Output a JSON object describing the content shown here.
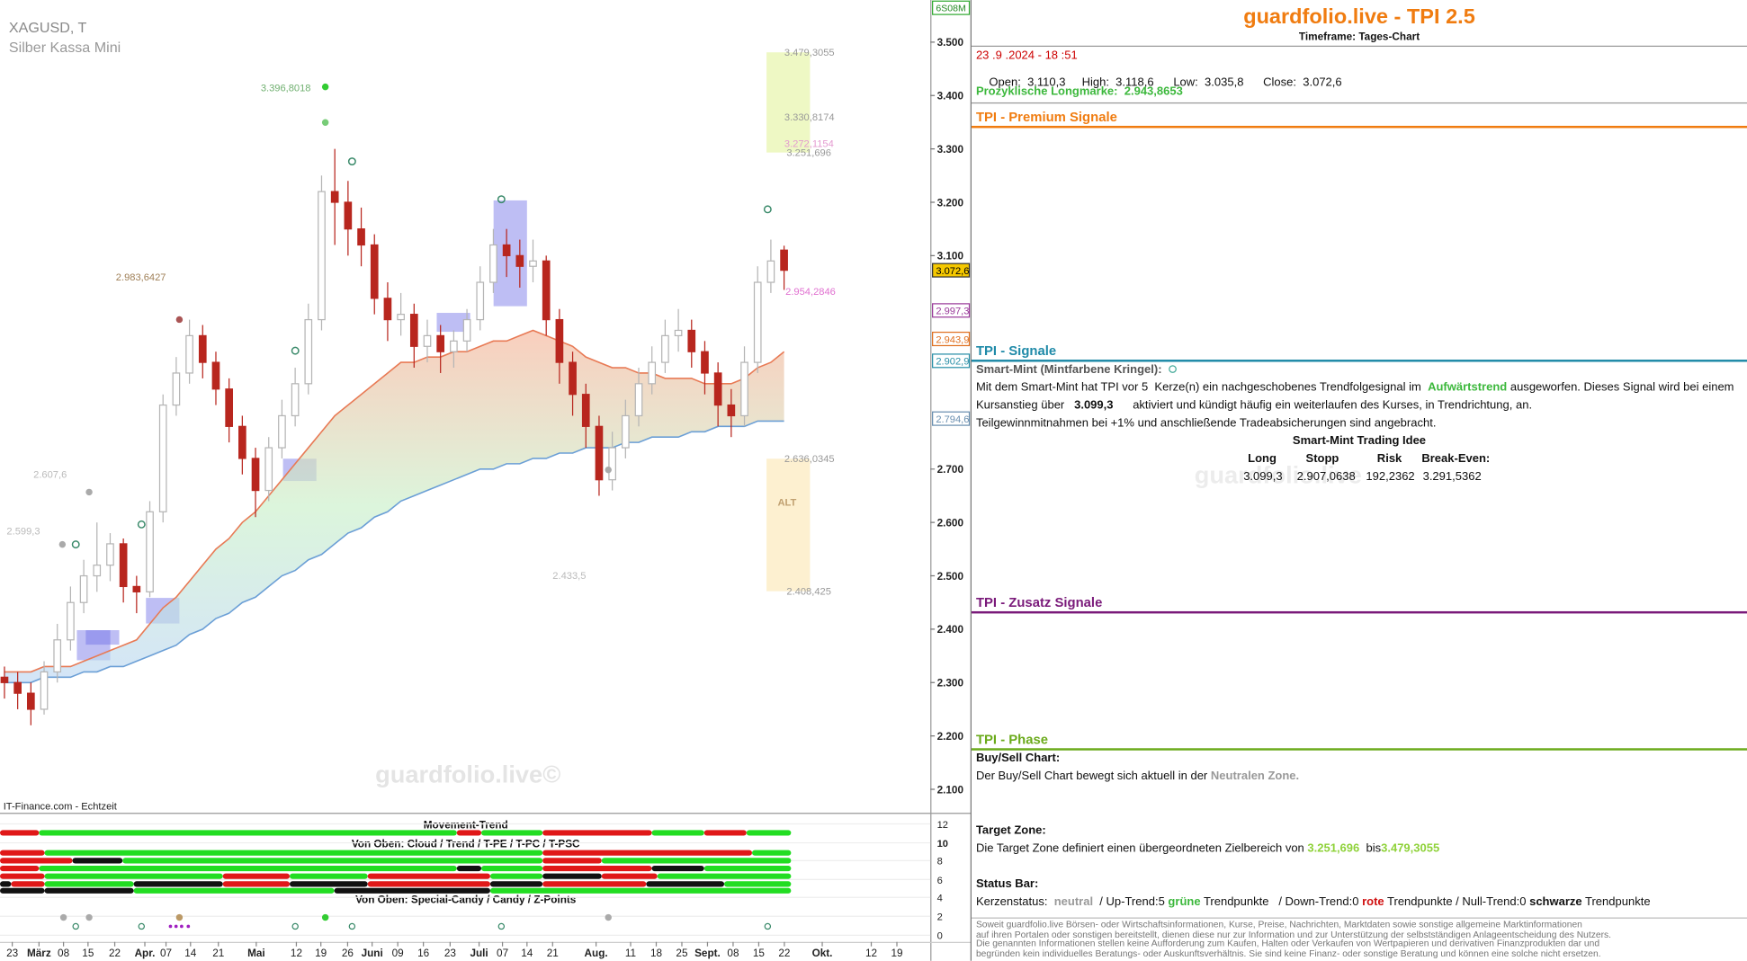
{
  "chart_data": {
    "type": "candlestick",
    "title": "XAGUSD, T",
    "subtitle": "Silber Kassa Mini",
    "badge": "6S08M",
    "source": "IT-Finance.com - Echtzeit",
    "watermark": "guardfolio.live©",
    "x_labels": [
      "23",
      "März",
      "08",
      "15",
      "22",
      "Apr.",
      "07",
      "14",
      "21",
      "Mai",
      "12",
      "19",
      "26",
      "Juni",
      "09",
      "16",
      "23",
      "Juli",
      "07",
      "14",
      "21",
      "Aug.",
      "11",
      "18",
      "25",
      "Sept.",
      "08",
      "15",
      "22",
      "Okt.",
      "12",
      "19"
    ],
    "open": [
      2.31,
      2.3,
      2.28,
      2.25,
      2.32,
      2.38,
      2.45,
      2.5,
      2.52,
      2.56,
      2.48,
      2.47,
      2.62,
      2.82,
      2.88,
      2.95,
      2.9,
      2.85,
      2.78,
      2.72,
      2.66,
      2.74,
      2.8,
      2.86,
      2.98,
      3.22,
      3.2,
      3.15,
      3.12,
      3.02,
      2.98,
      2.99,
      2.93,
      2.95,
      2.92,
      2.94,
      2.98,
      3.05,
      3.12,
      3.1,
      3.08,
      3.09,
      2.98,
      2.9,
      2.84,
      2.78,
      2.68,
      2.74,
      2.8,
      2.86,
      2.9,
      2.95,
      2.96,
      2.92,
      2.88,
      2.82,
      2.8,
      2.9,
      3.05,
      3.1103
    ],
    "high": [
      2.33,
      2.32,
      2.3,
      2.34,
      2.41,
      2.48,
      2.53,
      2.6,
      2.58,
      2.57,
      2.5,
      2.64,
      2.84,
      2.91,
      2.98,
      2.97,
      2.92,
      2.87,
      2.8,
      2.74,
      2.76,
      2.83,
      2.89,
      3.01,
      3.25,
      3.3,
      3.24,
      3.19,
      3.14,
      3.05,
      3.03,
      3.01,
      2.98,
      2.97,
      2.96,
      3.0,
      3.08,
      3.15,
      3.15,
      3.13,
      3.13,
      3.1,
      3.0,
      2.92,
      2.86,
      2.8,
      2.77,
      2.83,
      2.89,
      2.93,
      2.98,
      3.0,
      2.98,
      2.94,
      2.9,
      2.85,
      2.93,
      3.08,
      3.13,
      3.1186
    ],
    "low": [
      2.27,
      2.25,
      2.22,
      2.24,
      2.3,
      2.36,
      2.43,
      2.47,
      2.49,
      2.45,
      2.43,
      2.46,
      2.6,
      2.8,
      2.86,
      2.87,
      2.82,
      2.75,
      2.69,
      2.61,
      2.64,
      2.72,
      2.78,
      2.84,
      2.96,
      3.12,
      3.1,
      3.08,
      2.99,
      2.94,
      2.95,
      2.89,
      2.9,
      2.88,
      2.89,
      2.92,
      2.96,
      3.03,
      3.06,
      3.04,
      3.05,
      2.95,
      2.86,
      2.8,
      2.74,
      2.65,
      2.66,
      2.72,
      2.78,
      2.84,
      2.88,
      2.92,
      2.89,
      2.84,
      2.78,
      2.76,
      2.78,
      2.88,
      3.03,
      3.0358
    ],
    "close": [
      2.3,
      2.28,
      2.25,
      2.32,
      2.38,
      2.45,
      2.5,
      2.52,
      2.56,
      2.48,
      2.47,
      2.62,
      2.82,
      2.88,
      2.95,
      2.9,
      2.85,
      2.78,
      2.72,
      2.66,
      2.74,
      2.8,
      2.86,
      2.98,
      3.22,
      3.2,
      3.15,
      3.12,
      3.02,
      2.98,
      2.99,
      2.93,
      2.95,
      2.92,
      2.94,
      2.98,
      3.05,
      3.12,
      3.1,
      3.08,
      3.09,
      2.98,
      2.9,
      2.84,
      2.78,
      2.68,
      2.74,
      2.8,
      2.86,
      2.9,
      2.95,
      2.96,
      2.92,
      2.88,
      2.82,
      2.8,
      2.9,
      3.05,
      3.09,
      3.0726
    ],
    "up_color": "#b5b5b5",
    "down_color": "#b8261e",
    "ma": [
      {
        "color": "#e87a55",
        "values": [
          2.32,
          2.32,
          2.32,
          2.33,
          2.33,
          2.33,
          2.34,
          2.35,
          2.36,
          2.37,
          2.38,
          2.41,
          2.44,
          2.46,
          2.49,
          2.52,
          2.55,
          2.57,
          2.6,
          2.62,
          2.65,
          2.68,
          2.71,
          2.74,
          2.77,
          2.8,
          2.82,
          2.84,
          2.86,
          2.88,
          2.9,
          2.9,
          2.91,
          2.91,
          2.92,
          2.92,
          2.93,
          2.94,
          2.94,
          2.95,
          2.96,
          2.95,
          2.94,
          2.93,
          2.91,
          2.9,
          2.89,
          2.89,
          2.88,
          2.88,
          2.87,
          2.87,
          2.87,
          2.86,
          2.86,
          2.86,
          2.87,
          2.89,
          2.9,
          2.92
        ]
      },
      {
        "color": "#6b9fd6",
        "values": [
          2.3,
          2.3,
          2.3,
          2.31,
          2.31,
          2.31,
          2.32,
          2.32,
          2.33,
          2.33,
          2.34,
          2.35,
          2.36,
          2.37,
          2.39,
          2.4,
          2.42,
          2.43,
          2.45,
          2.46,
          2.48,
          2.5,
          2.51,
          2.53,
          2.54,
          2.56,
          2.58,
          2.59,
          2.61,
          2.62,
          2.64,
          2.65,
          2.66,
          2.67,
          2.68,
          2.69,
          2.7,
          2.7,
          2.71,
          2.71,
          2.72,
          2.72,
          2.73,
          2.73,
          2.74,
          2.74,
          2.74,
          2.75,
          2.75,
          2.76,
          2.76,
          2.76,
          2.77,
          2.77,
          2.78,
          2.78,
          2.78,
          2.79,
          2.79,
          2.79
        ]
      }
    ],
    "ylim": [
      2.056,
      3.579
    ],
    "yticks": [
      {
        "value": 3.5,
        "label": "3.500"
      },
      {
        "value": 3.4,
        "label": "3.400"
      },
      {
        "value": 3.3,
        "label": "3.300"
      },
      {
        "value": 3.2,
        "label": "3.200"
      },
      {
        "value": 3.1,
        "label": "3.100"
      },
      {
        "value": 2.7,
        "label": "2.700"
      },
      {
        "value": 2.6,
        "label": "2.600"
      },
      {
        "value": 2.5,
        "label": "2.500"
      },
      {
        "value": 2.4,
        "label": "2.400"
      },
      {
        "value": 2.3,
        "label": "2.300"
      },
      {
        "value": 2.2,
        "label": "2.200"
      },
      {
        "value": 2.1,
        "label": "2.100"
      }
    ],
    "price_tags": [
      {
        "value": 3.0726,
        "label": "3.072,6",
        "color": "#f5c800"
      },
      {
        "value": 2.9973,
        "label": "2.997,3",
        "color": "#9b3b9b"
      },
      {
        "value": 2.9439,
        "label": "2.943,9",
        "color": "#e07020"
      },
      {
        "value": 2.9029,
        "label": "2.902,9",
        "color": "#2a90a8"
      },
      {
        "value": 2.7946,
        "label": "2.794,6",
        "color": "#6a8fb0"
      }
    ],
    "annotations": [
      {
        "text": "3.479,3055",
        "color": "#999999"
      },
      {
        "text": "3.330,8174",
        "color": "#999999"
      },
      {
        "text": "3.272,1154",
        "color": "#e49ad0"
      },
      {
        "text": "3.251,696",
        "color": "#999999"
      },
      {
        "text": "2.954,2846",
        "color": "#e070d0"
      },
      {
        "text": "2.636,0345",
        "color": "#999999"
      },
      {
        "text": "2.408,425",
        "color": "#999999"
      },
      {
        "text": "ALT",
        "color": "#c0a070"
      },
      {
        "text": "3.396,8018",
        "color": "#70b070"
      },
      {
        "text": "2.983,6427",
        "color": "#a08058"
      },
      {
        "text": "2.607,6",
        "color": "#bbbbbb"
      },
      {
        "text": "2.599,3",
        "color": "#bbbbbb"
      },
      {
        "text": "2.433,5",
        "color": "#bbbbbb"
      }
    ],
    "indicator": {
      "titles": [
        "Movement-Trend",
        "Von Oben: Cloud / Trend / T-PE / T-PC / T-PSC",
        "Von Oben: Special-Candy / Candy / Z-Points"
      ],
      "yticks": [
        12,
        10,
        8,
        6,
        4,
        2,
        0
      ]
    }
  },
  "panel": {
    "title": "guardfolio.live - TPI 2.5",
    "timeframe": "Timeframe: Tages-Chart",
    "datetime": "23 .9 .2024 - 18 :51",
    "quote": [
      [
        "Open:",
        "3.110,3"
      ],
      [
        "High:",
        "3.118,6"
      ],
      [
        "Low:",
        "3.035,8"
      ],
      [
        "Close:",
        "3.072,6"
      ]
    ],
    "longmark_label": "Prozyklische Longmarke:",
    "longmark_value": "2.943,8653",
    "sections": {
      "premium": "TPI - Premium Signale",
      "signals": "TPI - Signale",
      "extra": "TPI - Zusatz Signale",
      "phase": "TPI - Phase"
    },
    "smart_mint": {
      "heading": "Smart-Mint (Mintfarbene Kringel):",
      "line1": [
        "Mit dem Smart-Mint hat TPI vor 5  Kerze(n) ein nachgeschobenes Trendfolgesignal im  ",
        "Aufwärtstrend",
        " ausgeworfen. Dieses Signal wird bei einem"
      ],
      "line2": [
        "Kursanstieg über   ",
        "3.099,3",
        "      aktiviert und kündigt häufig ein weiterlaufen des Kurses, in Trendrichtung, an."
      ],
      "line3": "Teilgewinnmitnahmen bei +1% und anschließende Tradeabsicherungen sind angebracht.",
      "idea_title": "Smart-Mint Trading Idee",
      "table_header": [
        "Long",
        "Stopp",
        "Risk",
        "Break-Even:"
      ],
      "table_row": [
        "3.099,3",
        "2.907,0638",
        "192,2362",
        "3.291,5362"
      ],
      "watermark": "guardfolio.live"
    },
    "phase": {
      "buysell_heading": "Buy/Sell Chart:",
      "buysell_text": [
        "Der Buy/Sell Chart bewegt sich aktuell in der ",
        "Neutralen Zone."
      ],
      "target_heading": "Target Zone:",
      "target_text": [
        "Die Target Zone definiert einen übergeordneten Zielbereich von ",
        "3.251,696",
        "  bis",
        "3.479,3055"
      ],
      "status_heading": "Status Bar:",
      "status_text": [
        "Kerzenstatus:  ",
        "neutral",
        "  / Up-Trend:5 ",
        "grüne",
        " Trendpunkte   / Down-Trend:0 ",
        "rote",
        " Trendpunkte / Null-Trend:0 ",
        "schwarze",
        " Trendpunkte"
      ]
    },
    "disclaimer": [
      "Soweit guardfolio.live Börsen- oder Wirtschaftsinformationen, Kurse, Preise, Nachrichten, Marktdaten sowie sonstige allgemeine Marktinformationen",
      "auf ihren Portalen oder sonstigen bereitstellt, dienen diese nur zur Information und zur Unterstützung der selbstständigen Anlageentscheidung des Nutzers.",
      "Die genannten Informationen stellen keine Aufforderung zum Kaufen, Halten oder Verkaufen von Wertpapieren und derivativen Finanzprodukten dar und",
      "begründen kein individuelles Beratungs- oder Auskunftsverhältnis. Sie sind keine Finanz- oder sonstige Beratung und können eine solche nicht ersetzen."
    ]
  }
}
